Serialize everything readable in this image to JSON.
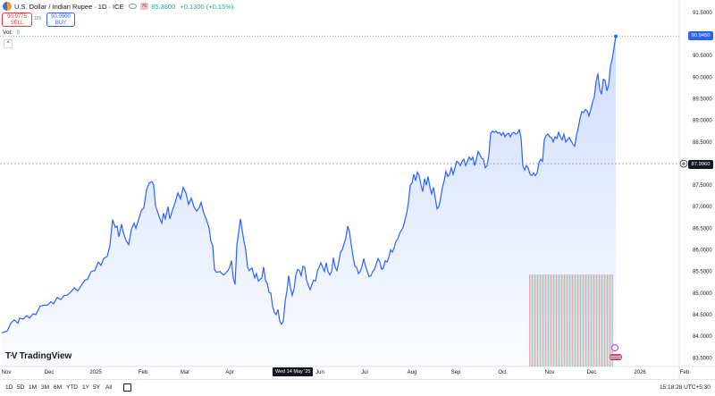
{
  "header": {
    "title": "U.S. Dollar / Indian Rupee · 1D · ICE",
    "badge": "76",
    "last": "85.3800",
    "change": "+0.1300 (+0.15%)"
  },
  "trade": {
    "sell_price": "90.9775",
    "sell_label": "SELL",
    "spread": "125",
    "buy_price": "90.9900",
    "buy_label": "BUY"
  },
  "volume": {
    "label": "Vol",
    "value": "0"
  },
  "price_tags": {
    "last": "90.9450",
    "crosshair": "87.9960"
  },
  "crosshair_date": "Wed 14 May '25",
  "logo": {
    "mark": "T∙V",
    "text": "TradingView"
  },
  "ranges": [
    "1D",
    "5D",
    "1M",
    "3M",
    "6M",
    "YTD",
    "1Y",
    "5Y",
    "All"
  ],
  "clock": "15:18:28 UTC+5:30",
  "colors": {
    "line": "#2962ff",
    "accent_up": "#22ab94",
    "accent_down": "#f2363a",
    "crosshair": "#787b86"
  },
  "chart_data": {
    "type": "area",
    "y_ticks": [
      "91.5000",
      "91.0000",
      "90.5000",
      "90.0000",
      "89.5000",
      "89.0000",
      "88.5000",
      "88.0000",
      "87.5000",
      "87.0000",
      "86.5000",
      "86.0000",
      "85.5000",
      "85.0000",
      "84.5000",
      "84.0000",
      "83.5000"
    ],
    "ylim": [
      83.3,
      91.62
    ],
    "x_labels": [
      "Nov",
      "Dec",
      "2025",
      "Feb",
      "Mar",
      "Apr",
      "May",
      "Jun",
      "Jul",
      "Aug",
      "Sep",
      "Oct",
      "Nov",
      "Dec",
      "2026",
      "Feb"
    ],
    "series": [
      {
        "values": [
          [
            0,
            84.08
          ],
          [
            3,
            84.1
          ],
          [
            6,
            84.12
          ],
          [
            10,
            84.3
          ],
          [
            14,
            84.38
          ],
          [
            18,
            84.3
          ],
          [
            20,
            84.42
          ],
          [
            24,
            84.4
          ],
          [
            28,
            84.48
          ],
          [
            31,
            84.42
          ],
          [
            35,
            84.52
          ],
          [
            38,
            84.5
          ],
          [
            43,
            84.7
          ],
          [
            47,
            84.72
          ],
          [
            51,
            84.72
          ],
          [
            55,
            84.8
          ],
          [
            58,
            84.75
          ],
          [
            62,
            84.9
          ],
          [
            66,
            84.85
          ],
          [
            70,
            84.95
          ],
          [
            73,
            84.95
          ],
          [
            77,
            85.02
          ],
          [
            81,
            85.12
          ],
          [
            85,
            85.05
          ],
          [
            89,
            85.18
          ],
          [
            93,
            85.3
          ],
          [
            96,
            85.32
          ],
          [
            100,
            85.5
          ],
          [
            104,
            85.52
          ],
          [
            108,
            85.72
          ],
          [
            111,
            85.64
          ],
          [
            114,
            85.8
          ],
          [
            118,
            85.85
          ],
          [
            121,
            86.1
          ],
          [
            124,
            86.7
          ],
          [
            127,
            86.52
          ],
          [
            129,
            86.55
          ],
          [
            131,
            86.3
          ],
          [
            134,
            86.6
          ],
          [
            136,
            86.4
          ],
          [
            139,
            86.22
          ],
          [
            142,
            86.12
          ],
          [
            145,
            86.48
          ],
          [
            148,
            86.62
          ],
          [
            150,
            86.5
          ],
          [
            153,
            86.7
          ],
          [
            156,
            86.9
          ],
          [
            159,
            86.98
          ],
          [
            162,
            87.4
          ],
          [
            165,
            87.55
          ],
          [
            168,
            87.58
          ],
          [
            170,
            87.5
          ],
          [
            172,
            87.02
          ],
          [
            174,
            86.9
          ],
          [
            177,
            86.72
          ],
          [
            179,
            86.62
          ],
          [
            181,
            86.85
          ],
          [
            183,
            86.72
          ],
          [
            186,
            87.0
          ],
          [
            188,
            86.72
          ],
          [
            191,
            86.92
          ],
          [
            194,
            87.1
          ],
          [
            197,
            87.32
          ],
          [
            200,
            87.18
          ],
          [
            203,
            87.45
          ],
          [
            206,
            87.32
          ],
          [
            209,
            87.05
          ],
          [
            212,
            87.2
          ],
          [
            215,
            87.0
          ],
          [
            218,
            86.9
          ],
          [
            221,
            86.98
          ],
          [
            223,
            87.1
          ],
          [
            226,
            86.85
          ],
          [
            229,
            86.7
          ],
          [
            232,
            86.5
          ],
          [
            234,
            86.2
          ],
          [
            236,
            86.1
          ],
          [
            238,
            85.55
          ],
          [
            240,
            85.48
          ],
          [
            244,
            85.5
          ],
          [
            248,
            85.42
          ],
          [
            250,
            85.45
          ],
          [
            253,
            85.52
          ],
          [
            255,
            85.6
          ],
          [
            257,
            85.75
          ],
          [
            259,
            85.35
          ],
          [
            261,
            85.2
          ],
          [
            263,
            86.1
          ],
          [
            265,
            86.4
          ],
          [
            267,
            86.72
          ],
          [
            269,
            86.45
          ],
          [
            271,
            86.2
          ],
          [
            273,
            85.98
          ],
          [
            275,
            85.6
          ],
          [
            277,
            85.52
          ],
          [
            280,
            85.58
          ],
          [
            283,
            85.35
          ],
          [
            285,
            85.45
          ],
          [
            287,
            85.28
          ],
          [
            289,
            85.32
          ],
          [
            291,
            85.35
          ],
          [
            293,
            85.6
          ],
          [
            295,
            85.3
          ],
          [
            297,
            85.22
          ],
          [
            299,
            85.02
          ],
          [
            301,
            85.0
          ],
          [
            303,
            84.7
          ],
          [
            305,
            84.55
          ],
          [
            307,
            84.5
          ],
          [
            309,
            84.62
          ],
          [
            311,
            84.35
          ],
          [
            313,
            84.28
          ],
          [
            315,
            84.35
          ],
          [
            317,
            84.8
          ],
          [
            319,
            85.05
          ],
          [
            321,
            85.4
          ],
          [
            323,
            85.12
          ],
          [
            325,
            84.95
          ],
          [
            327,
            85.1
          ],
          [
            329,
            85.42
          ],
          [
            331,
            85.55
          ],
          [
            333,
            85.52
          ],
          [
            335,
            85.4
          ],
          [
            337,
            85.62
          ],
          [
            339,
            85.6
          ],
          [
            341,
            85.3
          ],
          [
            343,
            85.18
          ],
          [
            345,
            85.08
          ],
          [
            347,
            85.2
          ],
          [
            349,
            85.3
          ],
          [
            351,
            85.28
          ],
          [
            353,
            85.5
          ],
          [
            355,
            85.6
          ],
          [
            357,
            85.7
          ],
          [
            359,
            85.6
          ],
          [
            361,
            85.5
          ],
          [
            363,
            85.7
          ],
          [
            365,
            85.5
          ],
          [
            367,
            85.42
          ],
          [
            369,
            85.5
          ],
          [
            371,
            85.82
          ],
          [
            373,
            85.6
          ],
          [
            375,
            85.52
          ],
          [
            377,
            85.72
          ],
          [
            379,
            85.95
          ],
          [
            381,
            86.0
          ],
          [
            383,
            86.15
          ],
          [
            385,
            86.28
          ],
          [
            387,
            86.55
          ],
          [
            389,
            86.42
          ],
          [
            391,
            86.12
          ],
          [
            393,
            85.85
          ],
          [
            395,
            85.62
          ],
          [
            397,
            85.6
          ],
          [
            399,
            85.45
          ],
          [
            401,
            85.5
          ],
          [
            403,
            85.62
          ],
          [
            405,
            85.8
          ],
          [
            407,
            85.62
          ],
          [
            409,
            85.5
          ],
          [
            411,
            85.38
          ],
          [
            413,
            85.4
          ],
          [
            415,
            85.5
          ],
          [
            417,
            85.55
          ],
          [
            419,
            85.68
          ],
          [
            421,
            85.8
          ],
          [
            423,
            85.72
          ],
          [
            425,
            85.55
          ],
          [
            427,
            85.58
          ],
          [
            429,
            85.75
          ],
          [
            431,
            85.72
          ],
          [
            433,
            85.82
          ],
          [
            435,
            86.0
          ],
          [
            437,
            85.95
          ],
          [
            439,
            86.05
          ],
          [
            441,
            86.2
          ],
          [
            443,
            86.25
          ],
          [
            445,
            86.38
          ],
          [
            447,
            86.45
          ],
          [
            449,
            86.52
          ],
          [
            451,
            86.68
          ],
          [
            453,
            86.85
          ],
          [
            455,
            87.1
          ],
          [
            457,
            87.5
          ],
          [
            459,
            87.55
          ],
          [
            461,
            87.75
          ],
          [
            463,
            87.6
          ],
          [
            465,
            87.8
          ],
          [
            467,
            87.72
          ],
          [
            469,
            87.5
          ],
          [
            471,
            87.35
          ],
          [
            473,
            87.65
          ],
          [
            475,
            87.5
          ],
          [
            477,
            87.7
          ],
          [
            479,
            87.45
          ],
          [
            481,
            87.3
          ],
          [
            483,
            87.45
          ],
          [
            485,
            87.2
          ],
          [
            487,
            86.95
          ],
          [
            489,
            87.0
          ],
          [
            491,
            87.2
          ],
          [
            493,
            87.45
          ],
          [
            495,
            87.6
          ],
          [
            497,
            87.82
          ],
          [
            499,
            87.7
          ],
          [
            501,
            87.75
          ],
          [
            503,
            87.9
          ],
          [
            505,
            87.75
          ],
          [
            507,
            87.9
          ],
          [
            509,
            88.05
          ],
          [
            511,
            88.02
          ],
          [
            513,
            87.95
          ],
          [
            515,
            88.05
          ],
          [
            517,
            88.1
          ],
          [
            519,
            87.95
          ],
          [
            521,
            88.05
          ],
          [
            523,
            88.15
          ],
          [
            525,
            88.08
          ],
          [
            527,
            88.15
          ],
          [
            529,
            87.95
          ],
          [
            531,
            88.1
          ],
          [
            533,
            88.28
          ],
          [
            535,
            88.2
          ],
          [
            537,
            88.12
          ],
          [
            539,
            88.1
          ],
          [
            541,
            87.9
          ],
          [
            543,
            87.95
          ],
          [
            545,
            88.2
          ],
          [
            547,
            88.7
          ],
          [
            549,
            88.75
          ],
          [
            551,
            88.72
          ],
          [
            553,
            88.75
          ],
          [
            555,
            88.7
          ],
          [
            557,
            88.72
          ],
          [
            559,
            88.65
          ],
          [
            561,
            88.72
          ],
          [
            563,
            88.62
          ],
          [
            565,
            88.68
          ],
          [
            567,
            88.7
          ],
          [
            569,
            88.62
          ],
          [
            571,
            88.7
          ],
          [
            573,
            88.72
          ],
          [
            575,
            88.68
          ],
          [
            577,
            88.7
          ],
          [
            579,
            88.78
          ],
          [
            581,
            88.6
          ],
          [
            583,
            87.95
          ],
          [
            585,
            87.85
          ],
          [
            587,
            87.95
          ],
          [
            589,
            87.9
          ],
          [
            591,
            87.75
          ],
          [
            593,
            87.72
          ],
          [
            595,
            87.78
          ],
          [
            597,
            87.72
          ],
          [
            599,
            87.78
          ],
          [
            601,
            88.02
          ],
          [
            603,
            88.1
          ],
          [
            605,
            88.05
          ],
          [
            607,
            88.55
          ],
          [
            609,
            88.65
          ],
          [
            611,
            88.68
          ],
          [
            613,
            88.62
          ],
          [
            615,
            88.6
          ],
          [
            617,
            88.5
          ],
          [
            619,
            88.62
          ],
          [
            621,
            88.58
          ],
          [
            623,
            88.72
          ],
          [
            625,
            88.62
          ],
          [
            627,
            88.55
          ],
          [
            629,
            88.68
          ],
          [
            631,
            88.5
          ],
          [
            633,
            88.55
          ],
          [
            635,
            88.6
          ],
          [
            637,
            88.52
          ],
          [
            639,
            88.45
          ],
          [
            641,
            88.4
          ],
          [
            643,
            88.65
          ],
          [
            645,
            88.82
          ],
          [
            647,
            89.05
          ],
          [
            649,
            89.2
          ],
          [
            651,
            89.18
          ],
          [
            653,
            89.25
          ],
          [
            655,
            89.22
          ],
          [
            657,
            89.1
          ],
          [
            659,
            89.25
          ],
          [
            661,
            89.42
          ],
          [
            663,
            89.55
          ],
          [
            665,
            89.9
          ],
          [
            667,
            90.08
          ],
          [
            669,
            89.72
          ],
          [
            671,
            89.6
          ],
          [
            673,
            89.95
          ],
          [
            675,
            89.92
          ],
          [
            677,
            89.68
          ],
          [
            679,
            89.82
          ],
          [
            681,
            90.25
          ],
          [
            683,
            90.42
          ],
          [
            685,
            90.68
          ],
          [
            687,
            90.945
          ]
        ]
      }
    ]
  }
}
